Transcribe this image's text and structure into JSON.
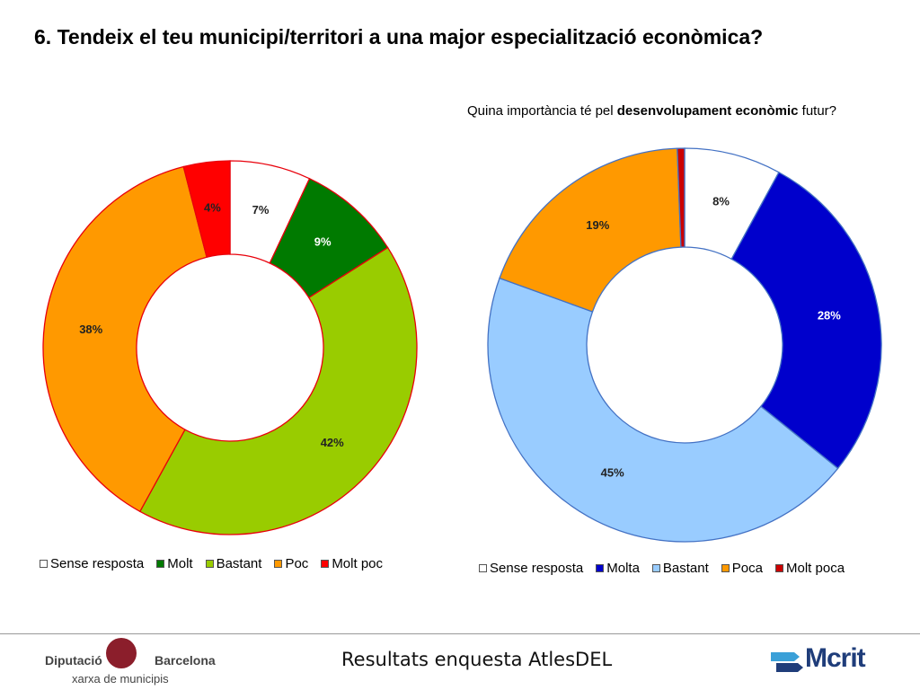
{
  "title": "6. Tendeix el teu municipi/territori a una major especialització econòmica?",
  "subtitle": {
    "before": "Quina importància té pel ",
    "bold": "desenvolupament econòmic",
    "after": " futur?"
  },
  "chart_data": [
    {
      "type": "pie",
      "donut": true,
      "slice_border_color": "#e8000b",
      "legend_position": "bottom",
      "categories": [
        "Sense resposta",
        "Molt",
        "Bastant",
        "Poc",
        "Molt poc"
      ],
      "values": [
        7,
        9,
        42,
        38,
        4
      ],
      "labels": [
        "7%",
        "9%",
        "42%",
        "38%",
        "4%"
      ],
      "colors": [
        "#ffffff",
        "#007a00",
        "#99cc00",
        "#ff9900",
        "#ff0000"
      ]
    },
    {
      "type": "pie",
      "donut": true,
      "slice_border_color": "#4472c4",
      "legend_position": "bottom",
      "categories": [
        "Sense resposta",
        "Molta",
        "Bastant",
        "Poca",
        "Molt poca"
      ],
      "values": [
        8,
        28,
        45,
        19,
        0.6
      ],
      "labels": [
        "8%",
        "28%",
        "45%",
        "19%",
        ""
      ],
      "colors": [
        "#ffffff",
        "#0000cc",
        "#99ccff",
        "#ff9900",
        "#cc0000"
      ]
    }
  ],
  "footer": {
    "center": "Resultats enquesta AtlesDEL",
    "left_logo": {
      "name": "Diputació",
      "name2": "Barcelona",
      "sub": "xarxa de municipis"
    },
    "right_logo": "Mcrit"
  }
}
